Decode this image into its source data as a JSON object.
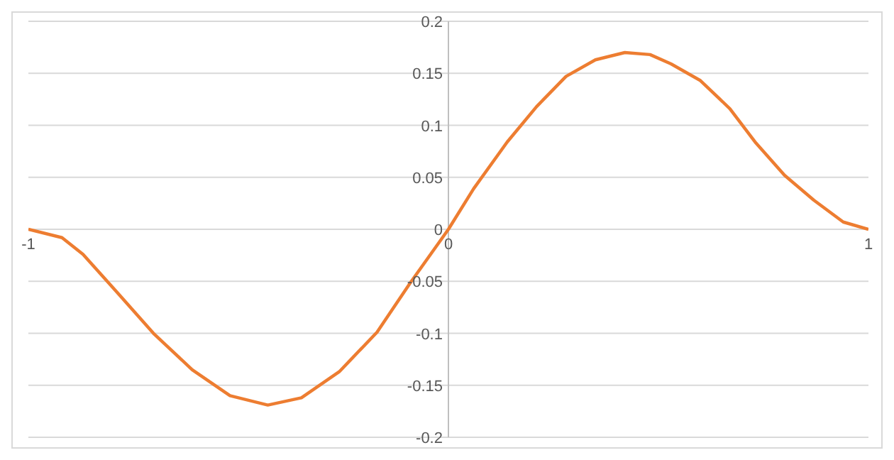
{
  "chart_data": {
    "type": "line",
    "x": [
      -1,
      -0.92,
      -0.87,
      -0.79,
      -0.7,
      -0.61,
      -0.52,
      -0.43,
      -0.35,
      -0.26,
      -0.17,
      -0.09,
      0,
      0.06,
      0.14,
      0.21,
      0.28,
      0.35,
      0.42,
      0.48,
      0.53,
      0.6,
      0.67,
      0.73,
      0.8,
      0.87,
      0.94,
      1
    ],
    "series": [
      {
        "color": "#ed7d31",
        "values": [
          0,
          -0.008,
          -0.024,
          -0.06,
          -0.101,
          -0.135,
          -0.16,
          -0.169,
          -0.162,
          -0.137,
          -0.099,
          -0.051,
          0,
          0.039,
          0.084,
          0.118,
          0.147,
          0.163,
          0.17,
          0.168,
          0.159,
          0.143,
          0.116,
          0.084,
          0.052,
          0.028,
          0.007,
          0
        ]
      }
    ],
    "xlim": [
      -1,
      1
    ],
    "xticks": [
      -1,
      0,
      1
    ],
    "ylim": [
      -0.2,
      0.2
    ],
    "yticks": [
      -0.2,
      -0.15,
      -0.1,
      -0.05,
      0,
      0.05,
      0.1,
      0.15,
      0.2
    ],
    "grid": "y",
    "marker": "none",
    "line_style": "solid"
  }
}
